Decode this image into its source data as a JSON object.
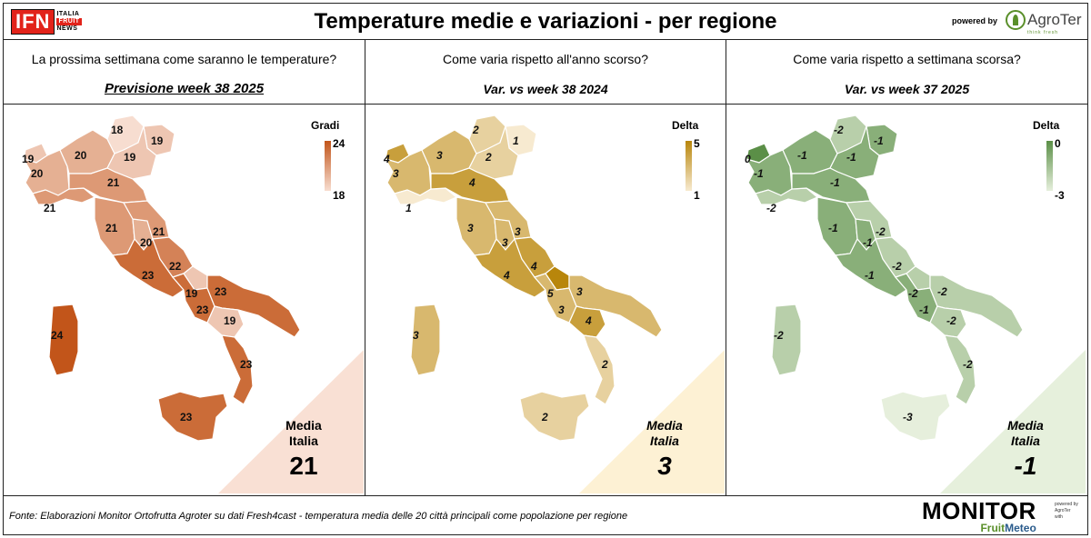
{
  "header": {
    "title": "Temperature medie e variazioni - per regione",
    "logo_ifn": "IFN",
    "logo_lines": [
      "ITALIA",
      "FRUIT",
      "NEWS"
    ],
    "powered_by": "powered by",
    "brand": "AgroTer",
    "brand_sub": "think fresh"
  },
  "panels": [
    {
      "question": "La prossima settimana come saranno le temperature?",
      "subtitle": "Previsione week 38 2025",
      "legend_title": "Gradi",
      "legend_max": "24",
      "legend_min": "18",
      "media_label_1": "Media",
      "media_label_2": "Italia",
      "media_value": "21",
      "colors": {
        "low": "#f7ddd0",
        "high": "#c2551a",
        "triangle": "#f9e0d4"
      },
      "regions": [
        {
          "name": "Valle d'Aosta",
          "value": "19"
        },
        {
          "name": "Piemonte",
          "value": "20"
        },
        {
          "name": "Lombardia",
          "value": "20"
        },
        {
          "name": "Trentino-Alto Adige",
          "value": "18"
        },
        {
          "name": "Friuli-Venezia Giulia",
          "value": "19"
        },
        {
          "name": "Veneto",
          "value": "19"
        },
        {
          "name": "Liguria",
          "value": "21"
        },
        {
          "name": "Emilia-Romagna",
          "value": "21"
        },
        {
          "name": "Toscana",
          "value": "21"
        },
        {
          "name": "Umbria",
          "value": "20"
        },
        {
          "name": "Marche",
          "value": "21"
        },
        {
          "name": "Lazio",
          "value": "23"
        },
        {
          "name": "Abruzzo",
          "value": "22"
        },
        {
          "name": "Molise",
          "value": "19"
        },
        {
          "name": "Campania",
          "value": "23"
        },
        {
          "name": "Puglia",
          "value": "23"
        },
        {
          "name": "Basilicata",
          "value": "19"
        },
        {
          "name": "Calabria",
          "value": "23"
        },
        {
          "name": "Sicilia",
          "value": "23"
        },
        {
          "name": "Sardegna",
          "value": "24"
        }
      ]
    },
    {
      "question": "Come varia rispetto all'anno scorso?",
      "subtitle": "Var. vs week 38 2024",
      "legend_title": "Delta",
      "legend_max": "5",
      "legend_min": "1",
      "media_label_1": "Media",
      "media_label_2": "Italia",
      "media_value": "3",
      "colors": {
        "low": "#f7ead0",
        "high": "#b8860b",
        "triangle": "#fdf1d4"
      },
      "regions": [
        {
          "name": "Valle d'Aosta",
          "value": "4"
        },
        {
          "name": "Piemonte",
          "value": "3"
        },
        {
          "name": "Lombardia",
          "value": "3"
        },
        {
          "name": "Trentino-Alto Adige",
          "value": "2"
        },
        {
          "name": "Friuli-Venezia Giulia",
          "value": "1"
        },
        {
          "name": "Veneto",
          "value": "2"
        },
        {
          "name": "Liguria",
          "value": "1"
        },
        {
          "name": "Emilia-Romagna",
          "value": "4"
        },
        {
          "name": "Toscana",
          "value": "3"
        },
        {
          "name": "Umbria",
          "value": "3"
        },
        {
          "name": "Marche",
          "value": "3"
        },
        {
          "name": "Lazio",
          "value": "4"
        },
        {
          "name": "Abruzzo",
          "value": "4"
        },
        {
          "name": "Molise",
          "value": "5"
        },
        {
          "name": "Campania",
          "value": "3"
        },
        {
          "name": "Puglia",
          "value": "3"
        },
        {
          "name": "Basilicata",
          "value": "4"
        },
        {
          "name": "Calabria",
          "value": "2"
        },
        {
          "name": "Sicilia",
          "value": "2"
        },
        {
          "name": "Sardegna",
          "value": "3"
        }
      ]
    },
    {
      "question": "Come varia rispetto a settimana scorsa?",
      "subtitle": "Var. vs week 37 2025",
      "legend_title": "Delta",
      "legend_max": "0",
      "legend_min": "-3",
      "media_label_1": "Media",
      "media_label_2": "Italia",
      "media_value": "-1",
      "colors": {
        "low": "#e6efdc",
        "high": "#5b8f47",
        "triangle": "#e6f0dc"
      },
      "regions": [
        {
          "name": "Valle d'Aosta",
          "value": "0"
        },
        {
          "name": "Piemonte",
          "value": "-1"
        },
        {
          "name": "Lombardia",
          "value": "-1"
        },
        {
          "name": "Trentino-Alto Adige",
          "value": "-2"
        },
        {
          "name": "Friuli-Venezia Giulia",
          "value": "-1"
        },
        {
          "name": "Veneto",
          "value": "-1"
        },
        {
          "name": "Liguria",
          "value": "-2"
        },
        {
          "name": "Emilia-Romagna",
          "value": "-1"
        },
        {
          "name": "Toscana",
          "value": "-1"
        },
        {
          "name": "Umbria",
          "value": "-1"
        },
        {
          "name": "Marche",
          "value": "-2"
        },
        {
          "name": "Lazio",
          "value": "-1"
        },
        {
          "name": "Abruzzo",
          "value": "-2"
        },
        {
          "name": "Molise",
          "value": "-2"
        },
        {
          "name": "Campania",
          "value": "-1"
        },
        {
          "name": "Puglia",
          "value": "-2"
        },
        {
          "name": "Basilicata",
          "value": "-2"
        },
        {
          "name": "Calabria",
          "value": "-2"
        },
        {
          "name": "Sicilia",
          "value": "-3"
        },
        {
          "name": "Sardegna",
          "value": "-2"
        }
      ]
    }
  ],
  "footer": {
    "source": "Fonte: Elaborazioni Monitor Ortofrutta Agroter su dati Fresh4cast - temperatura media delle 20 città principali come popolazione per regione",
    "monitor_title": "MONITOR",
    "monitor_sub_1": "Fruit",
    "monitor_sub_2": "Meteo",
    "side_lines": [
      "powered by",
      "AgroTer",
      "with"
    ]
  }
}
